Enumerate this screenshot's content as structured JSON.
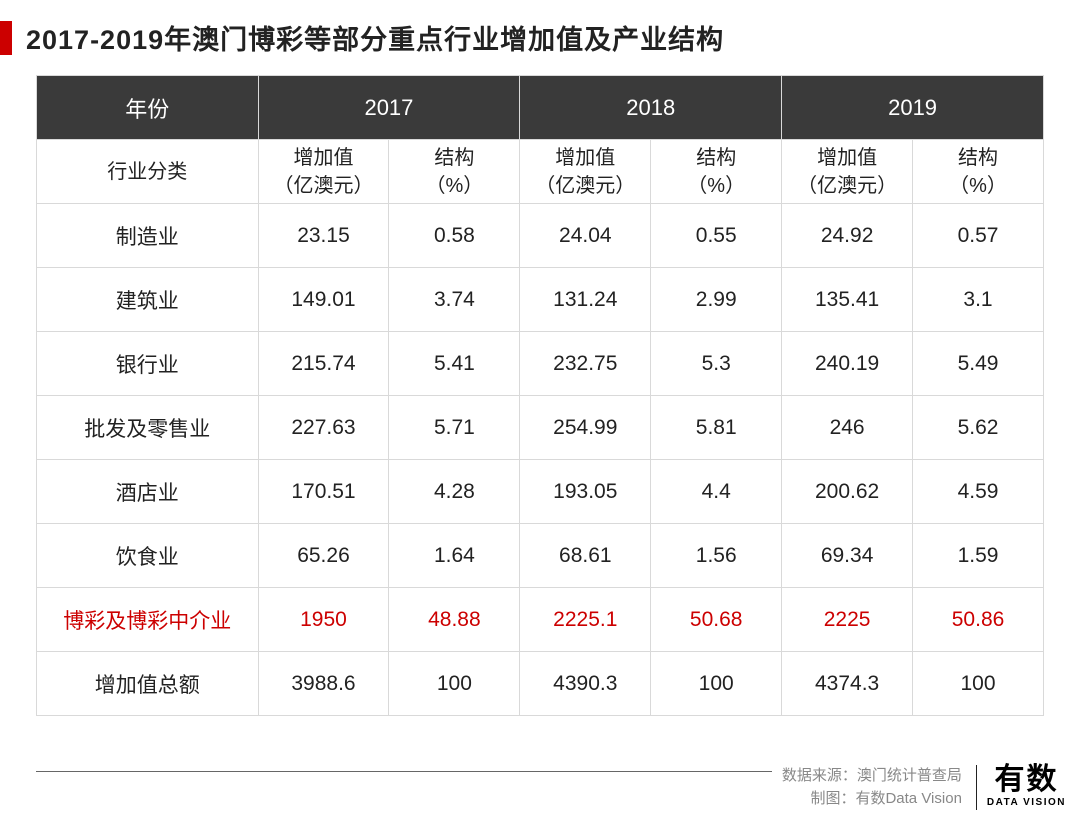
{
  "title": "2017-2019年澳门博彩等部分重点行业增加值及产业结构",
  "table": {
    "header": {
      "year_label": "年份",
      "years": [
        "2017",
        "2018",
        "2019"
      ]
    },
    "subheader": {
      "category_label": "行业分类",
      "value_label": "增加值\n（亿澳元）",
      "structure_label": "结构\n（%）"
    },
    "rows": [
      {
        "label": "制造业",
        "highlight": false,
        "cells": [
          "23.15",
          "0.58",
          "24.04",
          "0.55",
          "24.92",
          "0.57"
        ]
      },
      {
        "label": "建筑业",
        "highlight": false,
        "cells": [
          "149.01",
          "3.74",
          "131.24",
          "2.99",
          "135.41",
          "3.1"
        ]
      },
      {
        "label": "银行业",
        "highlight": false,
        "cells": [
          "215.74",
          "5.41",
          "232.75",
          "5.3",
          "240.19",
          "5.49"
        ]
      },
      {
        "label": "批发及零售业",
        "highlight": false,
        "cells": [
          "227.63",
          "5.71",
          "254.99",
          "5.81",
          "246",
          "5.62"
        ]
      },
      {
        "label": "酒店业",
        "highlight": false,
        "cells": [
          "170.51",
          "4.28",
          "193.05",
          "4.4",
          "200.62",
          "4.59"
        ]
      },
      {
        "label": "饮食业",
        "highlight": false,
        "cells": [
          "65.26",
          "1.64",
          "68.61",
          "1.56",
          "69.34",
          "1.59"
        ]
      },
      {
        "label": "博彩及博彩中介业",
        "highlight": true,
        "cells": [
          "1950",
          "48.88",
          "2225.1",
          "50.68",
          "2225",
          "50.86"
        ]
      },
      {
        "label": "增加值总额",
        "highlight": false,
        "cells": [
          "3988.6",
          "100",
          "4390.3",
          "100",
          "4374.3",
          "100"
        ]
      }
    ]
  },
  "footer": {
    "source": "数据来源：澳门统计普查局",
    "credit": "制图：有数Data Vision",
    "logo_cn": "有数",
    "logo_en": "DATA VISION"
  },
  "colors": {
    "accent_red": "#cc0000",
    "header_bg": "#3a3a3a",
    "border": "#d9d9d9",
    "text": "#222222",
    "muted": "#888888"
  }
}
